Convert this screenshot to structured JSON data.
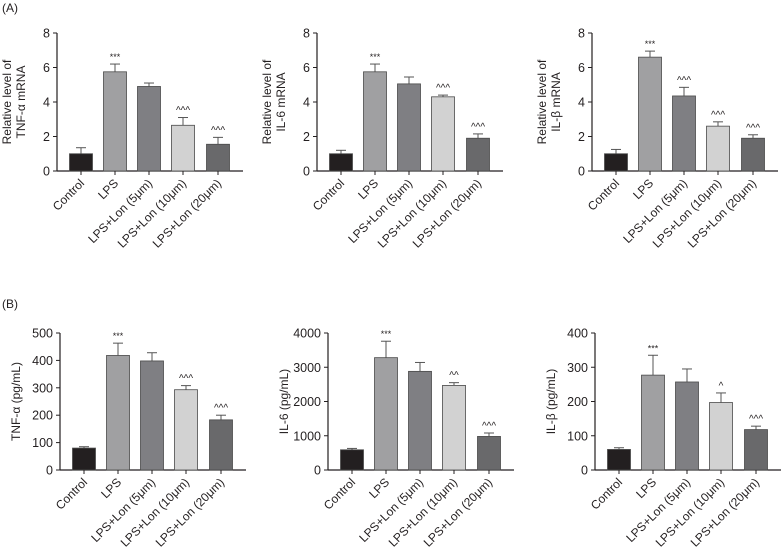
{
  "panel_labels": [
    "(A)",
    "(B)"
  ],
  "colors": [
    "#231f20",
    "#a0a0a2",
    "#7f7f83",
    "#d2d2d2",
    "#69696b"
  ],
  "chart_data": [
    {
      "type": "bar",
      "panel": "A",
      "ylabel": [
        "Relative level of",
        "TNF-α mRNA"
      ],
      "ylim": [
        0,
        8
      ],
      "yticks": [
        0,
        2,
        4,
        6,
        8
      ],
      "categories": [
        "Control",
        "LPS",
        "LPS+Lon (5μm)",
        "LPS+Lon (10μm)",
        "LPS+Lon (20μm)"
      ],
      "values": [
        1.0,
        5.75,
        4.9,
        2.65,
        1.55
      ],
      "errors": [
        0.35,
        0.45,
        0.2,
        0.45,
        0.4
      ],
      "annotations": [
        "",
        "***",
        "",
        "^^^",
        "^^^"
      ]
    },
    {
      "type": "bar",
      "panel": "A",
      "ylabel": [
        "Relative level of",
        "IL-6 mRNA"
      ],
      "ylim": [
        0,
        8
      ],
      "yticks": [
        0,
        2,
        4,
        6,
        8
      ],
      "categories": [
        "Control",
        "LPS",
        "LPS+Lon (5μm)",
        "LPS+Lon (10μm)",
        "LPS+Lon (20μm)"
      ],
      "values": [
        1.0,
        5.75,
        5.05,
        4.3,
        1.9
      ],
      "errors": [
        0.2,
        0.45,
        0.4,
        0.1,
        0.25
      ],
      "annotations": [
        "",
        "***",
        "",
        "^^^",
        "^^^"
      ]
    },
    {
      "type": "bar",
      "panel": "A",
      "ylabel": [
        "Relative level of",
        "IL-β mRNA"
      ],
      "ylim": [
        0,
        8
      ],
      "yticks": [
        0,
        2,
        4,
        6,
        8
      ],
      "categories": [
        "Control",
        "LPS",
        "LPS+Lon (5μm)",
        "LPS+Lon (10μm)",
        "LPS+Lon (20μm)"
      ],
      "values": [
        1.0,
        6.6,
        4.35,
        2.6,
        1.9
      ],
      "errors": [
        0.25,
        0.35,
        0.5,
        0.25,
        0.2
      ],
      "annotations": [
        "",
        "***",
        "^^^",
        "^^^",
        "^^^"
      ]
    },
    {
      "type": "bar",
      "panel": "B",
      "ylabel": [
        "TNF-α (pg/mL)"
      ],
      "ylim": [
        0,
        500
      ],
      "yticks": [
        0,
        100,
        200,
        300,
        400,
        500
      ],
      "categories": [
        "Control",
        "LPS",
        "LPS+Lon (5μm)",
        "LPS+Lon (10μm)",
        "LPS+Lon (20μm)"
      ],
      "values": [
        80,
        418,
        398,
        293,
        183
      ],
      "errors": [
        5,
        45,
        30,
        15,
        17
      ],
      "annotations": [
        "",
        "***",
        "",
        "^^^",
        "^^^"
      ]
    },
    {
      "type": "bar",
      "panel": "B",
      "ylabel": [
        "IL-6 (pg/mL)"
      ],
      "ylim": [
        0,
        4000
      ],
      "yticks": [
        0,
        1000,
        2000,
        3000,
        4000
      ],
      "categories": [
        "Control",
        "LPS",
        "LPS+Lon (5μm)",
        "LPS+Lon (10μm)",
        "LPS+Lon (20μm)"
      ],
      "values": [
        590,
        3280,
        2880,
        2470,
        980
      ],
      "errors": [
        40,
        480,
        260,
        80,
        100
      ],
      "annotations": [
        "",
        "***",
        "",
        "^^",
        "^^^"
      ]
    },
    {
      "type": "bar",
      "panel": "B",
      "ylabel": [
        "IL-β (pg/mL)"
      ],
      "ylim": [
        0,
        400
      ],
      "yticks": [
        0,
        100,
        200,
        300,
        400
      ],
      "categories": [
        "Control",
        "LPS",
        "LPS+Lon (5μm)",
        "LPS+Lon (10μm)",
        "LPS+Lon (20μm)"
      ],
      "values": [
        60,
        277,
        257,
        197,
        118
      ],
      "errors": [
        5,
        58,
        38,
        28,
        10
      ],
      "annotations": [
        "",
        "***",
        "",
        "^",
        "^^^"
      ]
    }
  ]
}
